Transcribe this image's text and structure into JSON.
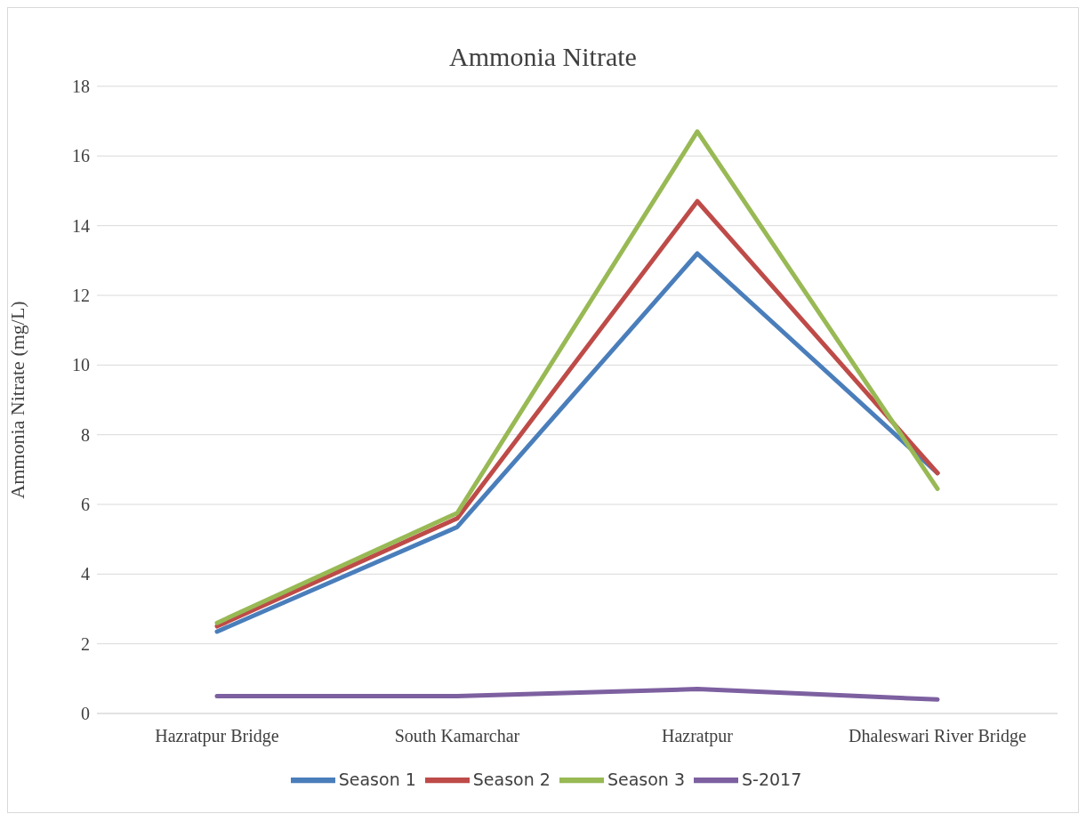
{
  "chart_data": {
    "type": "line",
    "title": "Ammonia Nitrate",
    "ylabel": "Ammonia Nitrate (mg/L)",
    "categories": [
      "Hazratpur Bridge",
      "South Kamarchar",
      "Hazratpur",
      "Dhaleswari River Bridge"
    ],
    "series": [
      {
        "name": "Season 1",
        "color": "#4a7ebb",
        "values": [
          2.35,
          5.35,
          13.2,
          6.9
        ]
      },
      {
        "name": "Season 2",
        "color": "#be4b48",
        "values": [
          2.5,
          5.6,
          14.7,
          6.9
        ]
      },
      {
        "name": "Season 3",
        "color": "#98b954",
        "values": [
          2.6,
          5.75,
          16.7,
          6.45
        ]
      },
      {
        "name": "S-2017",
        "color": "#7d60a0",
        "values": [
          0.5,
          0.5,
          0.7,
          0.4
        ]
      }
    ],
    "ylim": [
      0,
      18
    ],
    "yticks": [
      0,
      2,
      4,
      6,
      8,
      10,
      12,
      14,
      16,
      18
    ],
    "grid": "y",
    "legend": "bottom",
    "marker": "none",
    "line_style": "solid"
  }
}
